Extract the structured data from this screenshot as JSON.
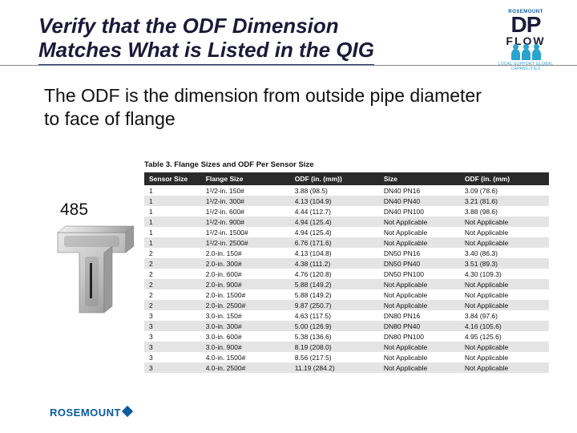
{
  "title_line1": "Verify that the ODF Dimension",
  "title_line2": "Matches What is Listed in the QIG",
  "body": "The ODF is the dimension from outside pipe diameter to face of flange",
  "label485": "485",
  "footer_brand": "ROSEMOUNT",
  "logo": {
    "small": "ROSEMOUNT",
    "dp": "DP",
    "flow": "FLOW",
    "tagline": "LOCAL SUPPORT GLOBAL CAPABILITIES"
  },
  "table": {
    "caption": "Table 3. Flange Sizes and ODF Per Sensor Size",
    "columns": [
      "Sensor Size",
      "Flange Size",
      "ODF (in. (mm))",
      "Size",
      "ODF (in. (mm)"
    ],
    "col_widths": [
      "14%",
      "22%",
      "22%",
      "20%",
      "22%"
    ],
    "rows": [
      [
        "1",
        "1<sup>1</sup>/2-in. 150#",
        "3.88 (98.5)",
        "DN40 PN16",
        "3.09 (78.6)"
      ],
      [
        "1",
        "1<sup>1</sup>/2-in. 300#",
        "4.13 (104.9)",
        "DN40 PN40",
        "3.21 (81.6)"
      ],
      [
        "1",
        "1<sup>1</sup>/2-in. 600#",
        "4.44 (112.7)",
        "DN40 PN100",
        "3.88 (98.6)"
      ],
      [
        "1",
        "1<sup>1</sup>/2-in. 900#",
        "4.94 (125.4)",
        "Not Applicable",
        "Not Applicable"
      ],
      [
        "1",
        "1<sup>1</sup>/2-in. 1500#",
        "4.94 (125.4)",
        "Not Applicable",
        "Not Applicable"
      ],
      [
        "1",
        "1<sup>1</sup>/2-in. 2500#",
        "6.76 (171.6)",
        "Not Applicable",
        "Not Applicable"
      ],
      [
        "2",
        "2.0-in. 150#",
        "4.13 (104.8)",
        "DN50 PN16",
        "3.40 (86.3)"
      ],
      [
        "2",
        "2.0-in. 300#",
        "4.38 (111.2)",
        "DN50 PN40",
        "3.51 (89.3)"
      ],
      [
        "2",
        "2.0-in. 600#",
        "4.76 (120.8)",
        "DN50 PN100",
        "4.30 (109.3)"
      ],
      [
        "2",
        "2.0-in. 900#",
        "5.88 (149.2)",
        "Not Applicable",
        "Not Applicable"
      ],
      [
        "2",
        "2.0-in. 1500#",
        "5.88 (149.2)",
        "Not Applicable",
        "Not Applicable"
      ],
      [
        "2",
        "2.0-in. 2500#",
        "9.87 (250.7)",
        "Not Applicable",
        "Not Applicable"
      ],
      [
        "3",
        "3.0-in. 150#",
        "4.63 (117.5)",
        "DN80 PN16",
        "3.84 (97.6)"
      ],
      [
        "3",
        "3.0-in. 300#",
        "5.00 (126.9)",
        "DN80 PN40",
        "4.16 (105.6)"
      ],
      [
        "3",
        "3.0-in. 600#",
        "5.38 (136.6)",
        "DN80 PN100",
        "4.95 (125.6)"
      ],
      [
        "3",
        "3.0-in. 900#",
        "8.19 (208.0)",
        "Not Applicable",
        "Not Applicable"
      ],
      [
        "3",
        "4.0-in. 1500#",
        "8.56 (217.5)",
        "Not Applicable",
        "Not Applicable"
      ],
      [
        "3",
        "4.0-in. 2500#",
        "11.19 (284.2)",
        "Not Applicable",
        "Not Applicable"
      ]
    ],
    "row_bg_odd": "#ffffff",
    "row_bg_even": "#e4e4e4",
    "header_bg": "#2a2a2a",
    "header_fg": "#ffffff"
  },
  "colors": {
    "title": "#1a1a3a",
    "rule": "#1a3a6e",
    "brand_blue": "#0a5aa0",
    "people": "#2aa4cc"
  }
}
